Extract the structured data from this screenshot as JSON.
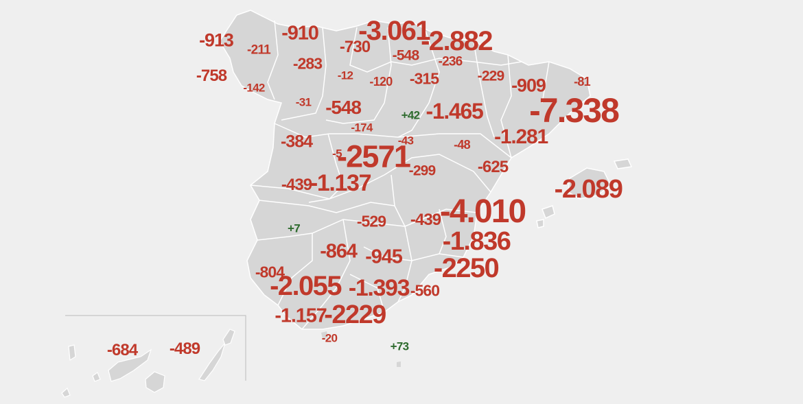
{
  "colors": {
    "background": "#efefef",
    "land": "#d6d6d6",
    "border": "#ffffff",
    "negative": "#c0392b",
    "positive": "#2e6b2e"
  },
  "labels": [
    {
      "id": "a-coruna",
      "text": "-913",
      "sign": "negative"
    },
    {
      "id": "lugo",
      "text": "-211",
      "sign": "negative"
    },
    {
      "id": "asturias",
      "text": "-910",
      "sign": "negative"
    },
    {
      "id": "cantabria",
      "text": "-730",
      "sign": "negative"
    },
    {
      "id": "bizkaia",
      "text": "-3.061",
      "sign": "negative"
    },
    {
      "id": "gipuzkoa",
      "text": "-2.882",
      "sign": "negative"
    },
    {
      "id": "alava",
      "text": "-548",
      "sign": "negative"
    },
    {
      "id": "navarra",
      "text": "-236",
      "sign": "negative"
    },
    {
      "id": "pontevedra",
      "text": "-758",
      "sign": "negative"
    },
    {
      "id": "ourense",
      "text": "-142",
      "sign": "negative"
    },
    {
      "id": "leon",
      "text": "-283",
      "sign": "negative"
    },
    {
      "id": "palencia",
      "text": "-12",
      "sign": "negative"
    },
    {
      "id": "burgos",
      "text": "-120",
      "sign": "negative"
    },
    {
      "id": "la-rioja",
      "text": "-315",
      "sign": "negative"
    },
    {
      "id": "huesca",
      "text": "-229",
      "sign": "negative"
    },
    {
      "id": "lleida",
      "text": "-909",
      "sign": "negative"
    },
    {
      "id": "girona",
      "text": "-81",
      "sign": "negative"
    },
    {
      "id": "barcelona",
      "text": "-7.338",
      "sign": "negative"
    },
    {
      "id": "zamora",
      "text": "-31",
      "sign": "negative"
    },
    {
      "id": "valladolid",
      "text": "-548",
      "sign": "negative"
    },
    {
      "id": "soria",
      "text": "+42",
      "sign": "positive"
    },
    {
      "id": "zaragoza",
      "text": "-1.465",
      "sign": "negative"
    },
    {
      "id": "segovia",
      "text": "-174",
      "sign": "negative"
    },
    {
      "id": "tarragona",
      "text": "-1.281",
      "sign": "negative"
    },
    {
      "id": "salamanca",
      "text": "-384",
      "sign": "negative"
    },
    {
      "id": "guadalajara",
      "text": "-43",
      "sign": "negative"
    },
    {
      "id": "teruel",
      "text": "-48",
      "sign": "negative"
    },
    {
      "id": "avila",
      "text": "-5",
      "sign": "negative"
    },
    {
      "id": "madrid",
      "text": "-2571",
      "sign": "negative"
    },
    {
      "id": "cuenca",
      "text": "-299",
      "sign": "negative"
    },
    {
      "id": "castellon",
      "text": "-625",
      "sign": "negative"
    },
    {
      "id": "baleares",
      "text": "-2.089",
      "sign": "negative"
    },
    {
      "id": "caceres",
      "text": "-439",
      "sign": "negative"
    },
    {
      "id": "toledo",
      "text": "-1.137",
      "sign": "negative"
    },
    {
      "id": "badajoz",
      "text": "+7",
      "sign": "positive"
    },
    {
      "id": "ciudad-real",
      "text": "-529",
      "sign": "negative"
    },
    {
      "id": "albacete",
      "text": "-439",
      "sign": "negative"
    },
    {
      "id": "valencia",
      "text": "-4.010",
      "sign": "negative"
    },
    {
      "id": "alicante",
      "text": "-1.836",
      "sign": "negative"
    },
    {
      "id": "cordoba",
      "text": "-864",
      "sign": "negative"
    },
    {
      "id": "jaen",
      "text": "-945",
      "sign": "negative"
    },
    {
      "id": "murcia",
      "text": "-2250",
      "sign": "negative"
    },
    {
      "id": "huelva",
      "text": "-804",
      "sign": "negative"
    },
    {
      "id": "sevilla",
      "text": "-2.055",
      "sign": "negative"
    },
    {
      "id": "granada",
      "text": "-1.393",
      "sign": "negative"
    },
    {
      "id": "almeria",
      "text": "-560",
      "sign": "negative"
    },
    {
      "id": "cadiz",
      "text": "-1.157",
      "sign": "negative"
    },
    {
      "id": "malaga",
      "text": "-2229",
      "sign": "negative"
    },
    {
      "id": "ceuta",
      "text": "-20",
      "sign": "negative"
    },
    {
      "id": "melilla",
      "text": "+73",
      "sign": "positive"
    },
    {
      "id": "santa-cruz-de-tenerife",
      "text": "-684",
      "sign": "negative"
    },
    {
      "id": "las-palmas",
      "text": "-489",
      "sign": "negative"
    }
  ]
}
